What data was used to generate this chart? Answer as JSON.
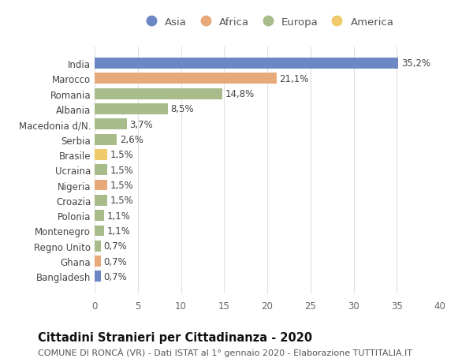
{
  "countries": [
    "Bangladesh",
    "Ghana",
    "Regno Unito",
    "Montenegro",
    "Polonia",
    "Croazia",
    "Nigeria",
    "Ucraina",
    "Brasile",
    "Serbia",
    "Macedonia d/N.",
    "Albania",
    "Romania",
    "Marocco",
    "India"
  ],
  "values": [
    0.7,
    0.7,
    0.7,
    1.1,
    1.1,
    1.5,
    1.5,
    1.5,
    1.5,
    2.6,
    3.7,
    8.5,
    14.8,
    21.1,
    35.2
  ],
  "labels": [
    "0,7%",
    "0,7%",
    "0,7%",
    "1,1%",
    "1,1%",
    "1,5%",
    "1,5%",
    "1,5%",
    "1,5%",
    "2,6%",
    "3,7%",
    "8,5%",
    "14,8%",
    "21,1%",
    "35,2%"
  ],
  "continents": [
    "Asia",
    "Africa",
    "Europa",
    "Europa",
    "Europa",
    "Europa",
    "Africa",
    "Europa",
    "America",
    "Europa",
    "Europa",
    "Europa",
    "Europa",
    "Africa",
    "Asia"
  ],
  "continent_colors": {
    "Asia": "#6b87c4",
    "Africa": "#e8a97a",
    "Europa": "#a8bb8a",
    "America": "#f0c96a"
  },
  "legend_order": [
    "Asia",
    "Africa",
    "Europa",
    "America"
  ],
  "title": "Cittadini Stranieri per Cittadinanza - 2020",
  "subtitle": "COMUNE DI RONCÀ (VR) - Dati ISTAT al 1° gennaio 2020 - Elaborazione TUTTITALIA.IT",
  "xlim": [
    0,
    40
  ],
  "xticks": [
    0,
    5,
    10,
    15,
    20,
    25,
    30,
    35,
    40
  ],
  "background_color": "#ffffff",
  "grid_color": "#e0e0e0",
  "bar_height": 0.72,
  "label_fontsize": 8.5,
  "title_fontsize": 10.5,
  "subtitle_fontsize": 8,
  "tick_fontsize": 8.5,
  "legend_fontsize": 9.5
}
